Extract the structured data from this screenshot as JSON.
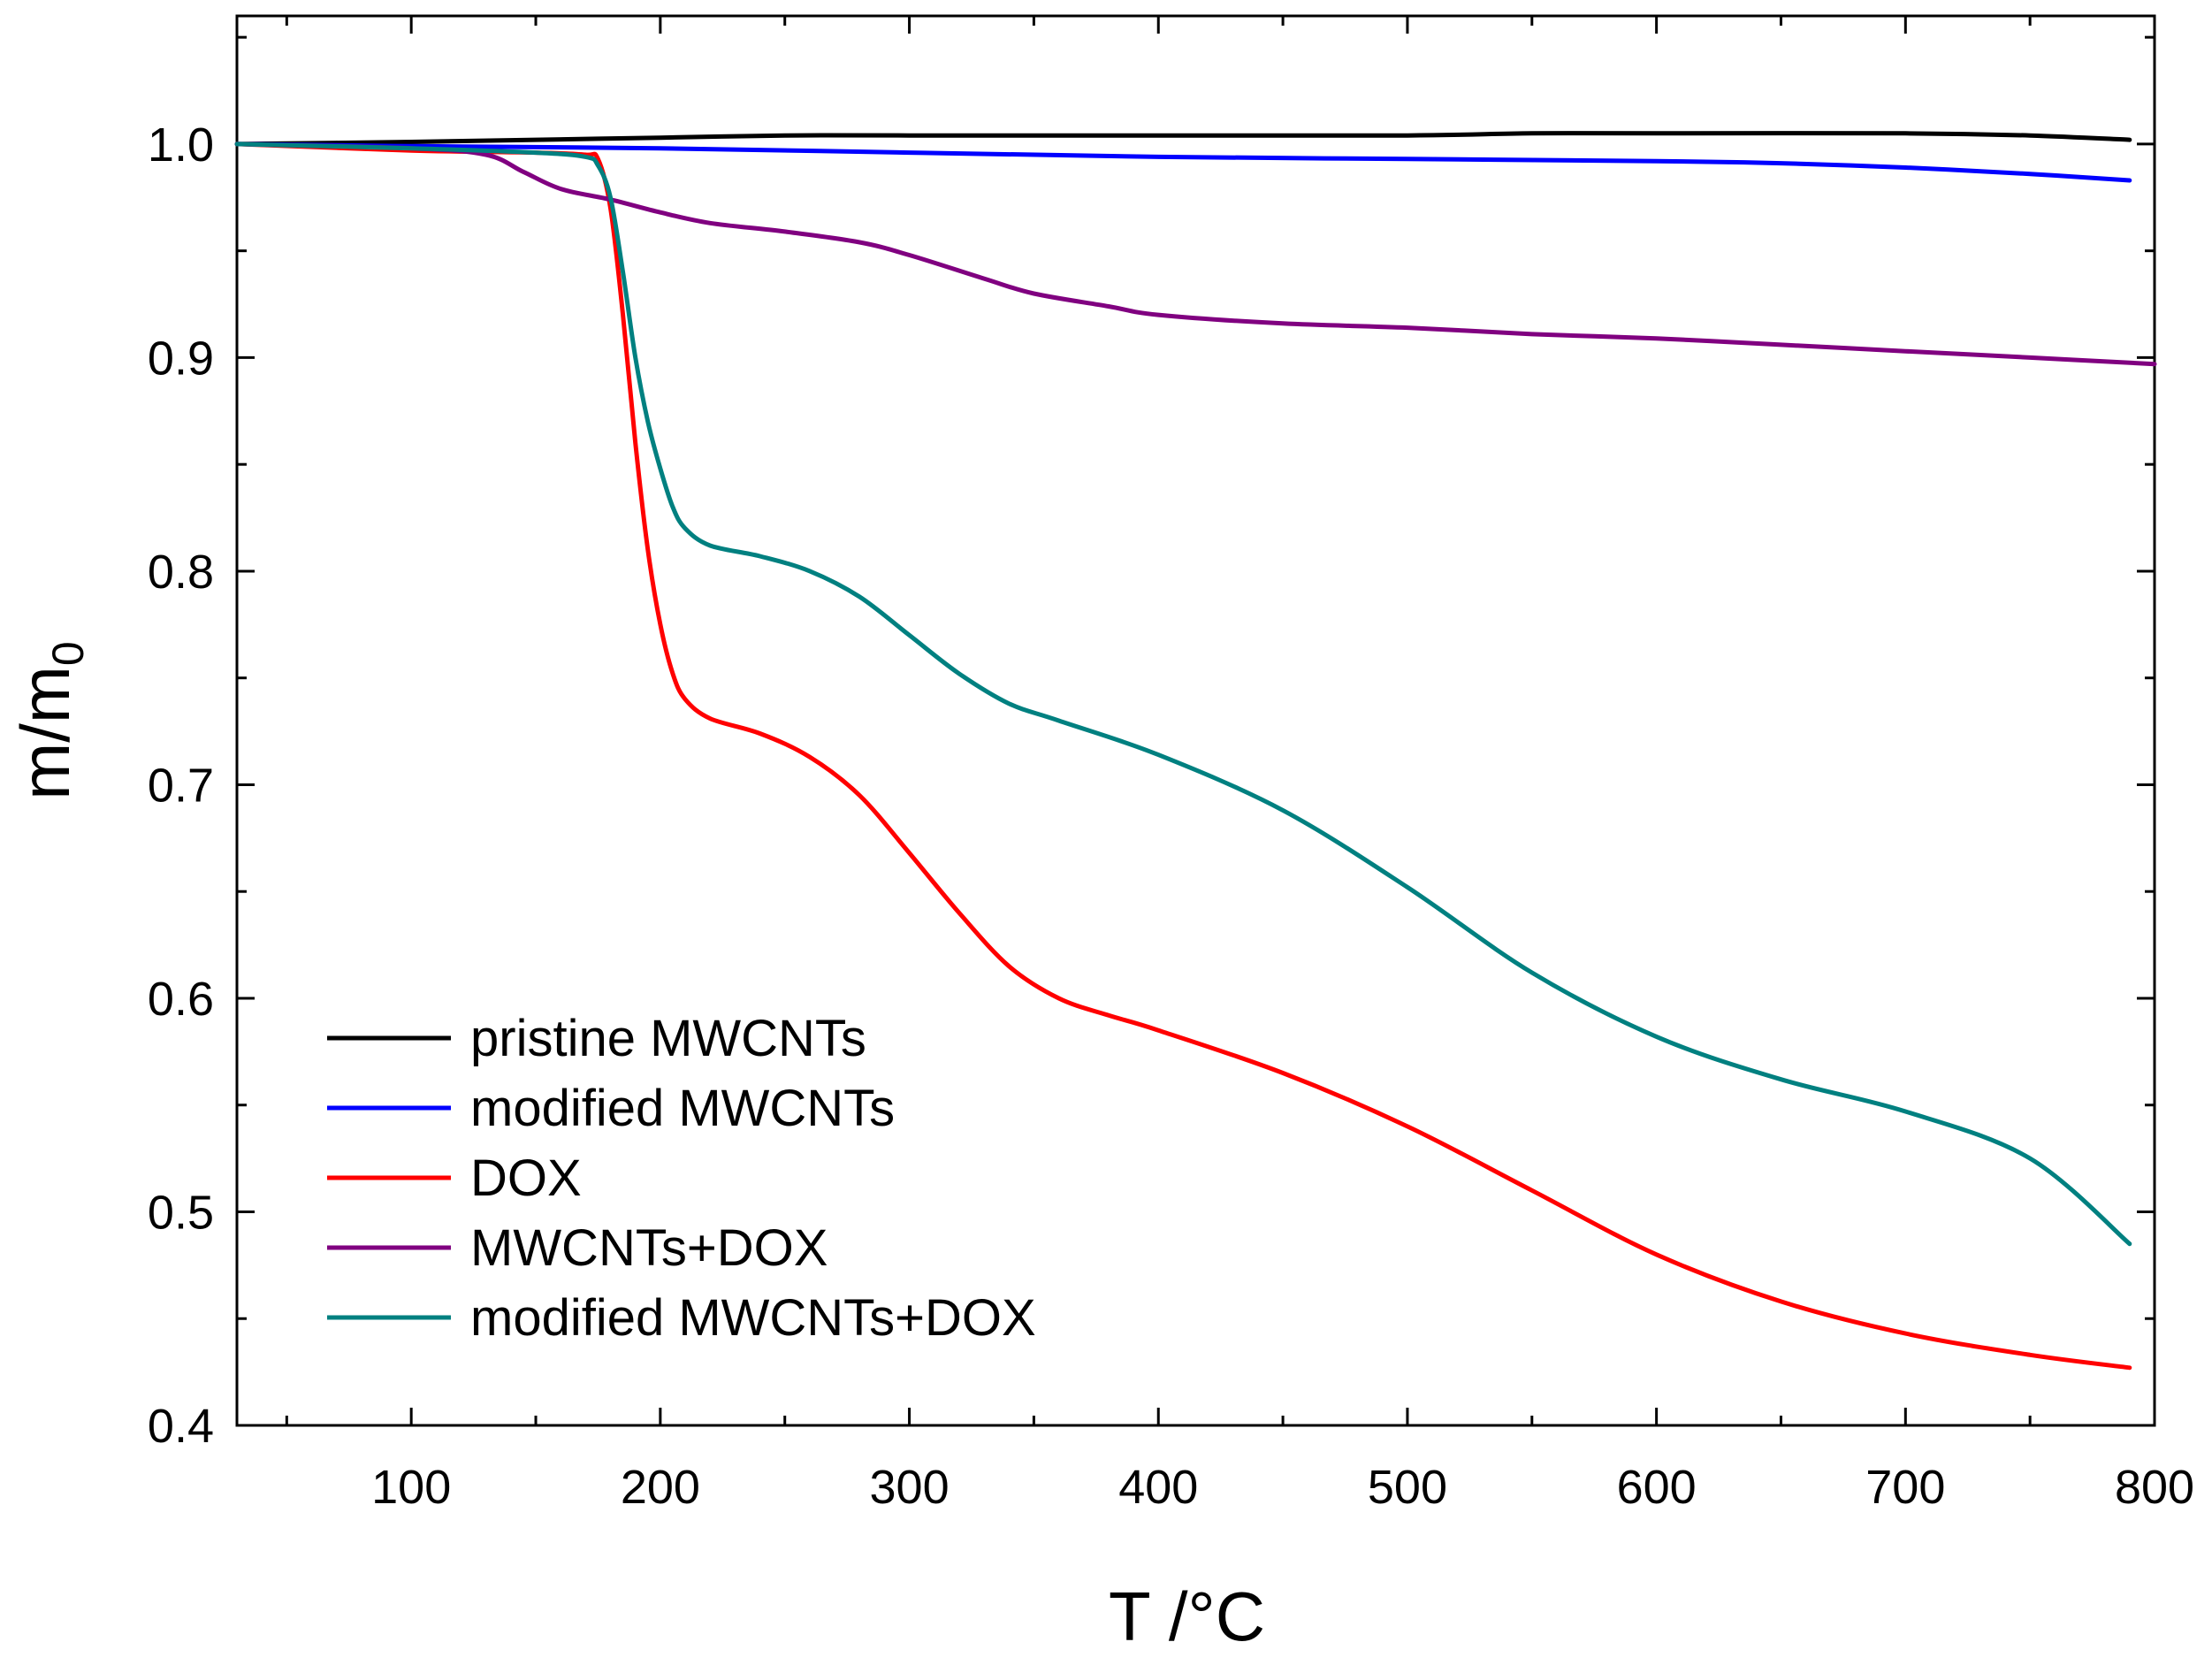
{
  "chart_data": {
    "type": "line",
    "title": "",
    "xlabel": "T /°C",
    "ylabel": {
      "main": "m/m",
      "subscript": "0"
    },
    "xlim": [
      30,
      800
    ],
    "ylim": [
      0.4,
      1.06
    ],
    "xticks": [
      100,
      200,
      300,
      400,
      500,
      600,
      700,
      800
    ],
    "xtick_labels": [
      "100",
      "200",
      "300",
      "400",
      "500",
      "600",
      "700",
      "800"
    ],
    "yticks": [
      0.4,
      0.5,
      0.6,
      0.7,
      0.8,
      0.9,
      1.0
    ],
    "ytick_labels": [
      "0.4",
      "0.5",
      "0.6",
      "0.7",
      "0.8",
      "0.9",
      "1.0"
    ],
    "grid": false,
    "legend_position": "bottom-left",
    "series": [
      {
        "name": "pristine MWCNTs",
        "color": "#000000",
        "x": [
          30,
          100,
          150,
          200,
          250,
          300,
          400,
          500,
          550,
          600,
          700,
          750,
          790
        ],
        "y": [
          1.0,
          1.001,
          1.002,
          1.003,
          1.004,
          1.004,
          1.004,
          1.004,
          1.005,
          1.005,
          1.005,
          1.004,
          1.002
        ]
      },
      {
        "name": "modified MWCNTs",
        "color": "#0000ff",
        "x": [
          30,
          100,
          200,
          300,
          400,
          500,
          600,
          650,
          700,
          750,
          790
        ],
        "y": [
          1.0,
          0.999,
          0.998,
          0.996,
          0.994,
          0.993,
          0.992,
          0.991,
          0.989,
          0.986,
          0.983
        ]
      },
      {
        "name": "DOX",
        "color": "#ff0000",
        "x": [
          30,
          100,
          150,
          170,
          175,
          180,
          185,
          190,
          195,
          200,
          205,
          210,
          220,
          240,
          260,
          280,
          300,
          320,
          340,
          360,
          380,
          400,
          450,
          500,
          550,
          600,
          650,
          700,
          750,
          790
        ],
        "y": [
          1.0,
          0.997,
          0.996,
          0.995,
          0.993,
          0.97,
          0.92,
          0.86,
          0.81,
          0.775,
          0.752,
          0.74,
          0.731,
          0.724,
          0.713,
          0.695,
          0.668,
          0.64,
          0.615,
          0.6,
          0.592,
          0.585,
          0.565,
          0.54,
          0.51,
          0.48,
          0.458,
          0.443,
          0.433,
          0.427
        ]
      },
      {
        "name": "MWCNTs+DOX",
        "color": "#800080",
        "x": [
          30,
          100,
          130,
          145,
          160,
          180,
          200,
          220,
          250,
          280,
          300,
          330,
          350,
          380,
          400,
          450,
          500,
          550,
          600,
          650,
          700,
          750,
          800
        ],
        "y": [
          1.0,
          0.998,
          0.995,
          0.987,
          0.979,
          0.974,
          0.968,
          0.963,
          0.959,
          0.954,
          0.948,
          0.937,
          0.93,
          0.924,
          0.92,
          0.916,
          0.914,
          0.911,
          0.909,
          0.906,
          0.903,
          0.9,
          0.897
        ]
      },
      {
        "name": "modified MWCNTs+DOX",
        "color": "#008080",
        "x": [
          30,
          100,
          150,
          170,
          175,
          180,
          185,
          190,
          195,
          200,
          205,
          210,
          220,
          240,
          260,
          280,
          300,
          320,
          340,
          360,
          400,
          450,
          500,
          550,
          600,
          650,
          700,
          750,
          790
        ],
        "y": [
          1.0,
          0.998,
          0.996,
          0.994,
          0.99,
          0.975,
          0.94,
          0.9,
          0.87,
          0.848,
          0.83,
          0.82,
          0.812,
          0.807,
          0.8,
          0.788,
          0.77,
          0.752,
          0.738,
          0.73,
          0.714,
          0.688,
          0.652,
          0.612,
          0.582,
          0.562,
          0.547,
          0.525,
          0.485
        ]
      }
    ]
  }
}
